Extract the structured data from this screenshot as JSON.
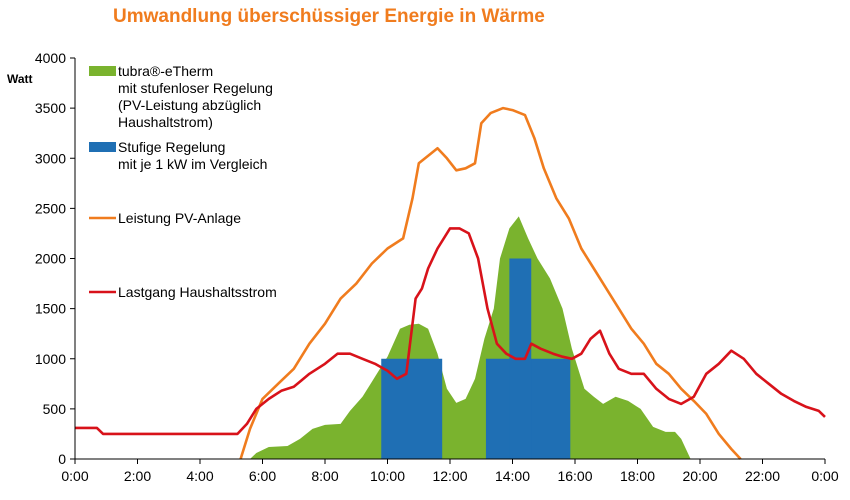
{
  "chart_data": {
    "type": "area",
    "title": "Umwandlung überschüssiger Energie in Wärme",
    "ylabel": "Watt",
    "xlabel": "",
    "xlim_hours": [
      0,
      24
    ],
    "ylim": [
      0,
      4000
    ],
    "x_ticks": [
      "0:00",
      "2:00",
      "4:00",
      "6:00",
      "8:00",
      "10:00",
      "12:00",
      "14:00",
      "16:00",
      "18:00",
      "20:00",
      "22:00",
      "0:00"
    ],
    "y_ticks": [
      0,
      500,
      1000,
      1500,
      2000,
      2500,
      3000,
      3500,
      4000
    ],
    "grid": false,
    "legend_position": "top-left",
    "colors": {
      "green": "#7ab32e",
      "blue": "#1f6fb4",
      "orange": "#f07c1e",
      "red": "#d8121a",
      "title": "#f07c1e"
    },
    "series": [
      {
        "name": "tubra®-eTherm|mit stufenloser Regelung|(PV-Leistung abzüglich|Haushaltstrom)",
        "kind": "area",
        "color": "#7ab32e",
        "points": [
          [
            5.6,
            0
          ],
          [
            5.8,
            60
          ],
          [
            6.2,
            120
          ],
          [
            6.8,
            130
          ],
          [
            7.2,
            200
          ],
          [
            7.6,
            300
          ],
          [
            8.0,
            340
          ],
          [
            8.5,
            350
          ],
          [
            8.8,
            480
          ],
          [
            9.2,
            620
          ],
          [
            9.6,
            820
          ],
          [
            10.0,
            1020
          ],
          [
            10.4,
            1300
          ],
          [
            10.7,
            1340
          ],
          [
            11.0,
            1350
          ],
          [
            11.3,
            1300
          ],
          [
            11.6,
            1050
          ],
          [
            11.9,
            700
          ],
          [
            12.2,
            560
          ],
          [
            12.5,
            600
          ],
          [
            12.8,
            800
          ],
          [
            13.1,
            1200
          ],
          [
            13.4,
            1500
          ],
          [
            13.6,
            2000
          ],
          [
            13.9,
            2300
          ],
          [
            14.2,
            2420
          ],
          [
            14.5,
            2200
          ],
          [
            14.8,
            2000
          ],
          [
            15.2,
            1800
          ],
          [
            15.6,
            1500
          ],
          [
            15.9,
            1100
          ],
          [
            16.3,
            700
          ],
          [
            16.6,
            620
          ],
          [
            16.9,
            550
          ],
          [
            17.3,
            620
          ],
          [
            17.7,
            580
          ],
          [
            18.1,
            500
          ],
          [
            18.5,
            320
          ],
          [
            18.9,
            270
          ],
          [
            19.2,
            270
          ],
          [
            19.4,
            200
          ],
          [
            19.7,
            0
          ]
        ]
      },
      {
        "name": "Stufige Regelung|mit  je 1 kW im Vergleich",
        "kind": "step",
        "color": "#1f6fb4",
        "blocks": [
          {
            "x0": 9.8,
            "x1": 11.75,
            "y": 1000
          },
          {
            "x0": 13.15,
            "x1": 15.85,
            "y": 1000
          },
          {
            "x0": 13.9,
            "x1": 14.6,
            "y": 2000
          }
        ]
      },
      {
        "name": "Leistung PV-Anlage",
        "kind": "line",
        "color": "#f07c1e",
        "points": [
          [
            5.3,
            0
          ],
          [
            5.6,
            300
          ],
          [
            6.0,
            600
          ],
          [
            6.5,
            750
          ],
          [
            7.0,
            900
          ],
          [
            7.5,
            1150
          ],
          [
            8.0,
            1350
          ],
          [
            8.5,
            1600
          ],
          [
            9.0,
            1750
          ],
          [
            9.5,
            1950
          ],
          [
            10.0,
            2100
          ],
          [
            10.5,
            2200
          ],
          [
            10.8,
            2600
          ],
          [
            11.0,
            2950
          ],
          [
            11.4,
            3050
          ],
          [
            11.6,
            3100
          ],
          [
            11.9,
            3000
          ],
          [
            12.2,
            2880
          ],
          [
            12.5,
            2900
          ],
          [
            12.8,
            2950
          ],
          [
            13.0,
            3350
          ],
          [
            13.3,
            3450
          ],
          [
            13.7,
            3500
          ],
          [
            14.0,
            3480
          ],
          [
            14.4,
            3430
          ],
          [
            14.7,
            3200
          ],
          [
            15.0,
            2900
          ],
          [
            15.4,
            2600
          ],
          [
            15.8,
            2400
          ],
          [
            16.2,
            2100
          ],
          [
            16.6,
            1900
          ],
          [
            17.0,
            1700
          ],
          [
            17.4,
            1500
          ],
          [
            17.8,
            1300
          ],
          [
            18.2,
            1150
          ],
          [
            18.6,
            950
          ],
          [
            19.0,
            850
          ],
          [
            19.4,
            700
          ],
          [
            19.8,
            580
          ],
          [
            20.2,
            450
          ],
          [
            20.6,
            250
          ],
          [
            21.0,
            100
          ],
          [
            21.3,
            0
          ]
        ]
      },
      {
        "name": "Lastgang Haushaltsstrom",
        "kind": "line",
        "color": "#d8121a",
        "points": [
          [
            0.0,
            310
          ],
          [
            0.3,
            310
          ],
          [
            0.7,
            310
          ],
          [
            0.9,
            250
          ],
          [
            1.5,
            250
          ],
          [
            3.0,
            250
          ],
          [
            4.5,
            250
          ],
          [
            5.2,
            250
          ],
          [
            5.5,
            350
          ],
          [
            5.8,
            500
          ],
          [
            6.2,
            600
          ],
          [
            6.6,
            680
          ],
          [
            7.0,
            720
          ],
          [
            7.5,
            850
          ],
          [
            8.0,
            950
          ],
          [
            8.4,
            1050
          ],
          [
            8.8,
            1050
          ],
          [
            9.2,
            1000
          ],
          [
            9.6,
            950
          ],
          [
            10.0,
            880
          ],
          [
            10.3,
            800
          ],
          [
            10.6,
            850
          ],
          [
            10.9,
            1600
          ],
          [
            11.1,
            1700
          ],
          [
            11.3,
            1900
          ],
          [
            11.6,
            2100
          ],
          [
            12.0,
            2300
          ],
          [
            12.3,
            2300
          ],
          [
            12.6,
            2250
          ],
          [
            12.9,
            2000
          ],
          [
            13.2,
            1500
          ],
          [
            13.5,
            1150
          ],
          [
            13.8,
            1050
          ],
          [
            14.1,
            1000
          ],
          [
            14.4,
            1000
          ],
          [
            14.6,
            1150
          ],
          [
            14.9,
            1100
          ],
          [
            15.3,
            1050
          ],
          [
            15.6,
            1020
          ],
          [
            15.9,
            1000
          ],
          [
            16.2,
            1050
          ],
          [
            16.5,
            1200
          ],
          [
            16.8,
            1280
          ],
          [
            17.1,
            1050
          ],
          [
            17.4,
            900
          ],
          [
            17.8,
            850
          ],
          [
            18.2,
            850
          ],
          [
            18.6,
            700
          ],
          [
            19.0,
            600
          ],
          [
            19.4,
            550
          ],
          [
            19.8,
            620
          ],
          [
            20.2,
            850
          ],
          [
            20.6,
            950
          ],
          [
            21.0,
            1080
          ],
          [
            21.4,
            1000
          ],
          [
            21.8,
            850
          ],
          [
            22.2,
            750
          ],
          [
            22.6,
            650
          ],
          [
            23.0,
            580
          ],
          [
            23.4,
            520
          ],
          [
            23.8,
            480
          ],
          [
            24.0,
            420
          ]
        ]
      }
    ]
  }
}
